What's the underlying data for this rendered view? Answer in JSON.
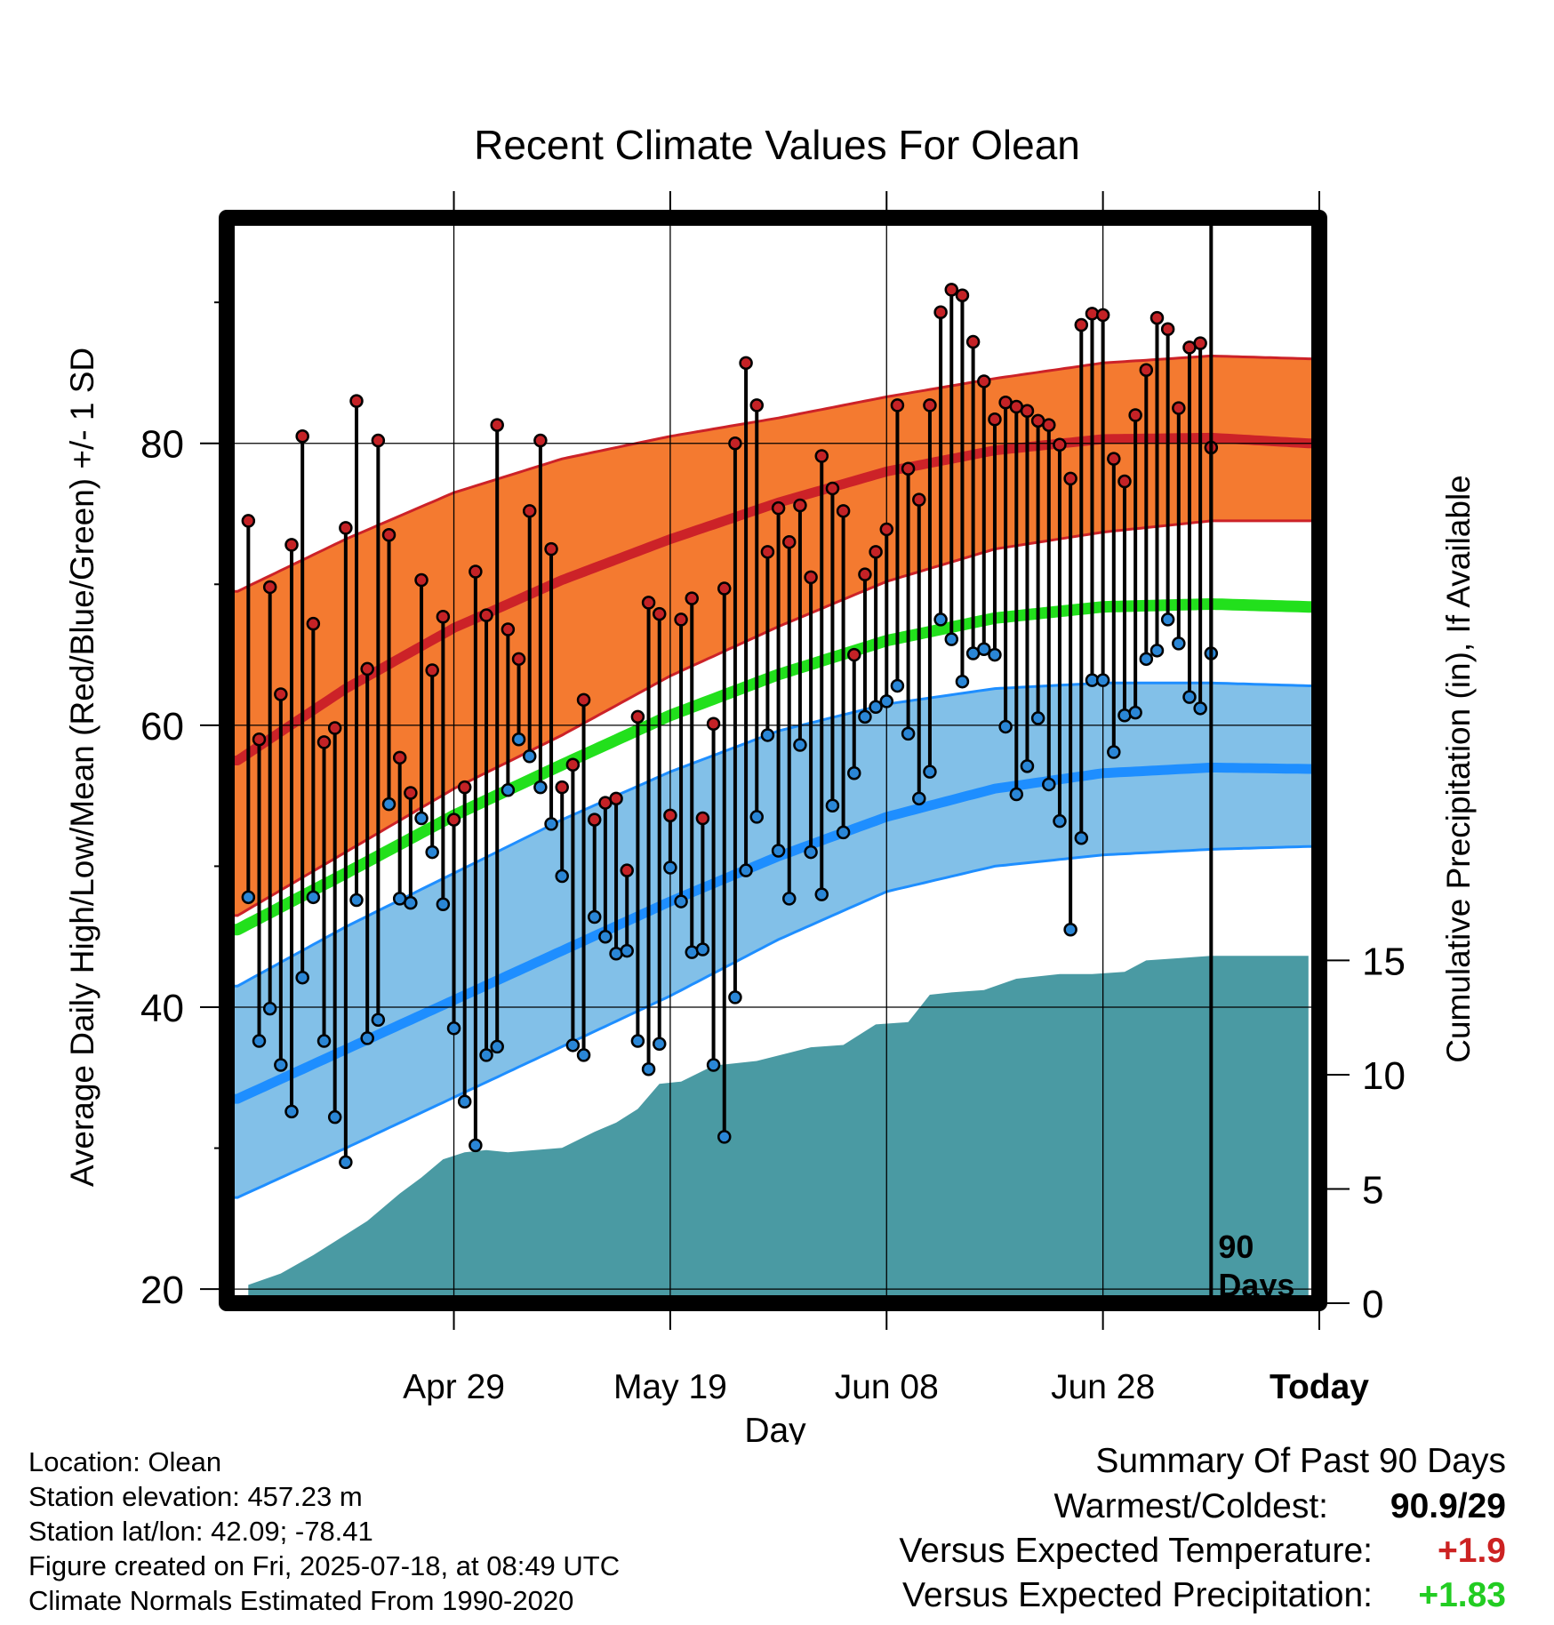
{
  "chart_data": {
    "type": "line",
    "title": "Recent Climate Values For Olean",
    "xlabel": "Day",
    "ylabel": "Average Daily High/Low/Mean (Red/Blue/Green) +/- 1 SD",
    "y2label": "Cumulative Precipitation (in), If Available",
    "x_tick_labels": [
      "Apr 29",
      "May 19",
      "Jun 08",
      "Jun 28",
      "Today"
    ],
    "x_range_days": [
      -91,
      10
    ],
    "y_ticks": [
      20,
      40,
      60,
      80
    ],
    "ylim": [
      19,
      96
    ],
    "y2_ticks": [
      0,
      5,
      10,
      15
    ],
    "y2lim": [
      0,
      47.5
    ],
    "today_label": [
      "90",
      "Days"
    ],
    "colors": {
      "high_band": "#f47a30",
      "high_line": "#cc2228",
      "low_band": "#82c0e8",
      "low_line": "#1e8eff",
      "mean_line": "#22e01c",
      "precip_fill": "#4a9aa3",
      "high_point": "#c42226",
      "low_point": "#2a86d6"
    },
    "normals": {
      "day": [
        -90,
        -80,
        -70,
        -60,
        -50,
        -40,
        -30,
        -20,
        -10,
        0,
        9
      ],
      "high_mean": [
        57.5,
        62.6,
        66.9,
        70.3,
        73.2,
        75.8,
        78.0,
        79.5,
        80.3,
        80.4,
        80.0
      ],
      "high_upper": [
        69.5,
        73.2,
        76.5,
        78.9,
        80.5,
        81.8,
        83.3,
        84.6,
        85.7,
        86.2,
        86.0
      ],
      "high_lower": [
        46.5,
        51.0,
        55.5,
        59.3,
        63.5,
        67.0,
        70.2,
        72.5,
        73.7,
        74.5,
        74.5
      ],
      "mean": [
        45.5,
        49.5,
        53.6,
        57.2,
        60.7,
        63.6,
        66.0,
        67.6,
        68.4,
        68.6,
        68.4
      ],
      "low_mean": [
        33.5,
        37.0,
        40.5,
        44.0,
        47.5,
        50.7,
        53.5,
        55.5,
        56.6,
        57.0,
        56.9
      ],
      "low_upper": [
        41.5,
        45.7,
        49.5,
        53.3,
        56.7,
        59.6,
        61.5,
        62.6,
        63.0,
        63.0,
        62.8
      ],
      "low_lower": [
        26.5,
        30.0,
        33.6,
        37.2,
        40.8,
        44.8,
        48.2,
        50.0,
        50.8,
        51.2,
        51.4
      ]
    },
    "daily": {
      "high": [
        74.5,
        59.0,
        69.8,
        62.2,
        72.8,
        80.5,
        67.2,
        58.8,
        59.8,
        74.0,
        83.0,
        64.0,
        80.2,
        73.5,
        57.7,
        55.2,
        70.3,
        63.9,
        67.7,
        53.3,
        55.6,
        70.9,
        67.8,
        81.3,
        66.8,
        64.7,
        75.2,
        80.2,
        72.5,
        55.6,
        57.2,
        61.8,
        53.3,
        54.5,
        54.8,
        49.7,
        60.6,
        68.7,
        67.9,
        53.6,
        67.5,
        69.0,
        53.4,
        60.1,
        69.7,
        80.0,
        85.7,
        82.7,
        72.3,
        75.4,
        73.0,
        75.6,
        70.5,
        79.1,
        76.8,
        75.2,
        65.0,
        70.7,
        72.3,
        73.9,
        82.7,
        78.2,
        76.0,
        82.7,
        89.3,
        90.9,
        90.5,
        87.2,
        84.4,
        81.7,
        82.9,
        82.6,
        82.3,
        81.6,
        81.3,
        79.9,
        77.5,
        88.4,
        89.2,
        89.1,
        78.9,
        77.3,
        82.0,
        85.2,
        88.9,
        88.1,
        82.5,
        86.8,
        87.1,
        79.7
      ],
      "low": [
        47.8,
        37.6,
        39.9,
        35.9,
        32.6,
        42.1,
        47.8,
        37.6,
        32.2,
        29.0,
        47.6,
        37.8,
        39.1,
        54.4,
        47.7,
        47.4,
        53.4,
        51.0,
        47.3,
        38.5,
        33.3,
        30.2,
        36.6,
        37.2,
        55.4,
        59.0,
        57.8,
        55.6,
        53.0,
        49.3,
        37.3,
        36.6,
        46.4,
        45.0,
        43.8,
        44.0,
        37.6,
        35.6,
        37.4,
        49.9,
        47.5,
        43.9,
        44.1,
        35.9,
        30.8,
        40.7,
        49.7,
        53.5,
        59.3,
        51.1,
        47.7,
        58.6,
        51.0,
        48.0,
        54.3,
        52.4,
        56.6,
        60.6,
        61.3,
        61.7,
        62.8,
        59.4,
        54.8,
        56.7,
        67.5,
        66.1,
        63.1,
        65.1,
        65.4,
        65.0,
        59.9,
        55.1,
        57.1,
        60.5,
        55.8,
        53.2,
        45.5,
        52.0,
        63.2,
        63.2,
        58.1,
        60.7,
        60.9,
        64.7,
        65.3,
        67.5,
        65.8,
        62.0,
        61.2,
        65.1
      ]
    },
    "precip": {
      "day": [
        -89,
        -86,
        -83,
        -80,
        -78,
        -75,
        -73,
        -71,
        -69,
        -67,
        -65,
        -60,
        -57,
        -55,
        -53,
        -51,
        -49,
        -46,
        -44,
        -42,
        -37,
        -34,
        -31,
        -28,
        -26,
        -24,
        -21,
        -18,
        -16,
        -14,
        -13,
        -11,
        -8,
        -6,
        -3,
        0,
        9
      ],
      "value": [
        0.8,
        1.3,
        2.1,
        3.0,
        3.6,
        4.8,
        5.5,
        6.3,
        6.6,
        6.7,
        6.6,
        6.8,
        7.5,
        7.9,
        8.5,
        9.6,
        9.7,
        10.4,
        10.5,
        10.6,
        11.2,
        11.3,
        12.2,
        12.3,
        13.5,
        13.6,
        13.7,
        14.2,
        14.3,
        14.4,
        14.4,
        14.4,
        14.5,
        15.0,
        15.1,
        15.2,
        15.2
      ]
    }
  },
  "info": {
    "location": "Location: Olean",
    "elevation": "Station elevation: 457.23 m",
    "latlon": "Station lat/lon: 42.09; -78.41",
    "created": "Figure created on Fri, 2025-07-18, at 08:49 UTC",
    "normals": "Climate Normals Estimated From 1990-2020"
  },
  "summary": {
    "heading": "Summary Of Past 90 Days",
    "warmest_label": "Warmest/Coldest:",
    "warmest_value": "90.9/29",
    "temp_label": "Versus Expected Temperature:",
    "temp_value": "+1.9",
    "temp_color": "#cc2222",
    "precip_label": "Versus Expected Precipitation:",
    "precip_value": "+1.83",
    "precip_color": "#22cc22"
  }
}
